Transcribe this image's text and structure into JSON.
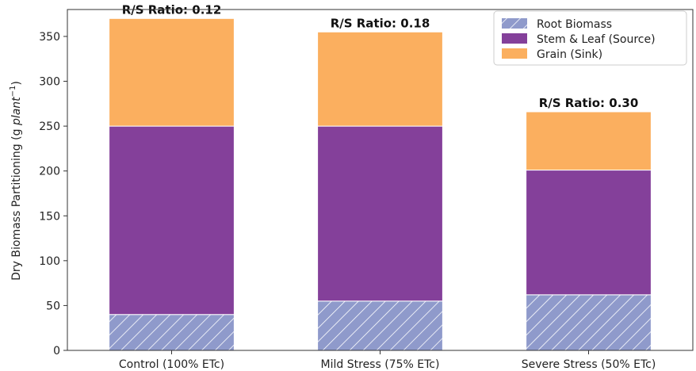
{
  "chart_data": {
    "type": "bar",
    "stacked": true,
    "categories": [
      "Control (100% ETc)",
      "Mild Stress (75% ETc)",
      "Severe Stress (50% ETc)"
    ],
    "series": [
      {
        "name": "Root Biomass",
        "values": [
          40,
          55,
          62
        ],
        "color": "#8f9acb",
        "hatch": true
      },
      {
        "name": "Stem & Leaf (Source)",
        "values": [
          210,
          195,
          139
        ],
        "color": "#84409a",
        "hatch": false
      },
      {
        "name": "Grain (Sink)",
        "values": [
          120,
          105,
          65
        ],
        "color": "#fbaf5f",
        "hatch": false
      }
    ],
    "annotations": [
      "R/S Ratio: 0.12",
      "R/S Ratio: 0.18",
      "R/S Ratio: 0.30"
    ],
    "ylabel_main": "Dry Biomass Partitioning (g ",
    "ylabel_unit": "plant",
    "ylabel_exp": "−1",
    "ylabel_close": ")",
    "ylim": [
      0,
      380
    ],
    "yticks": [
      0,
      50,
      100,
      150,
      200,
      250,
      300,
      350
    ],
    "grid": false,
    "legend_position": "top-right"
  }
}
